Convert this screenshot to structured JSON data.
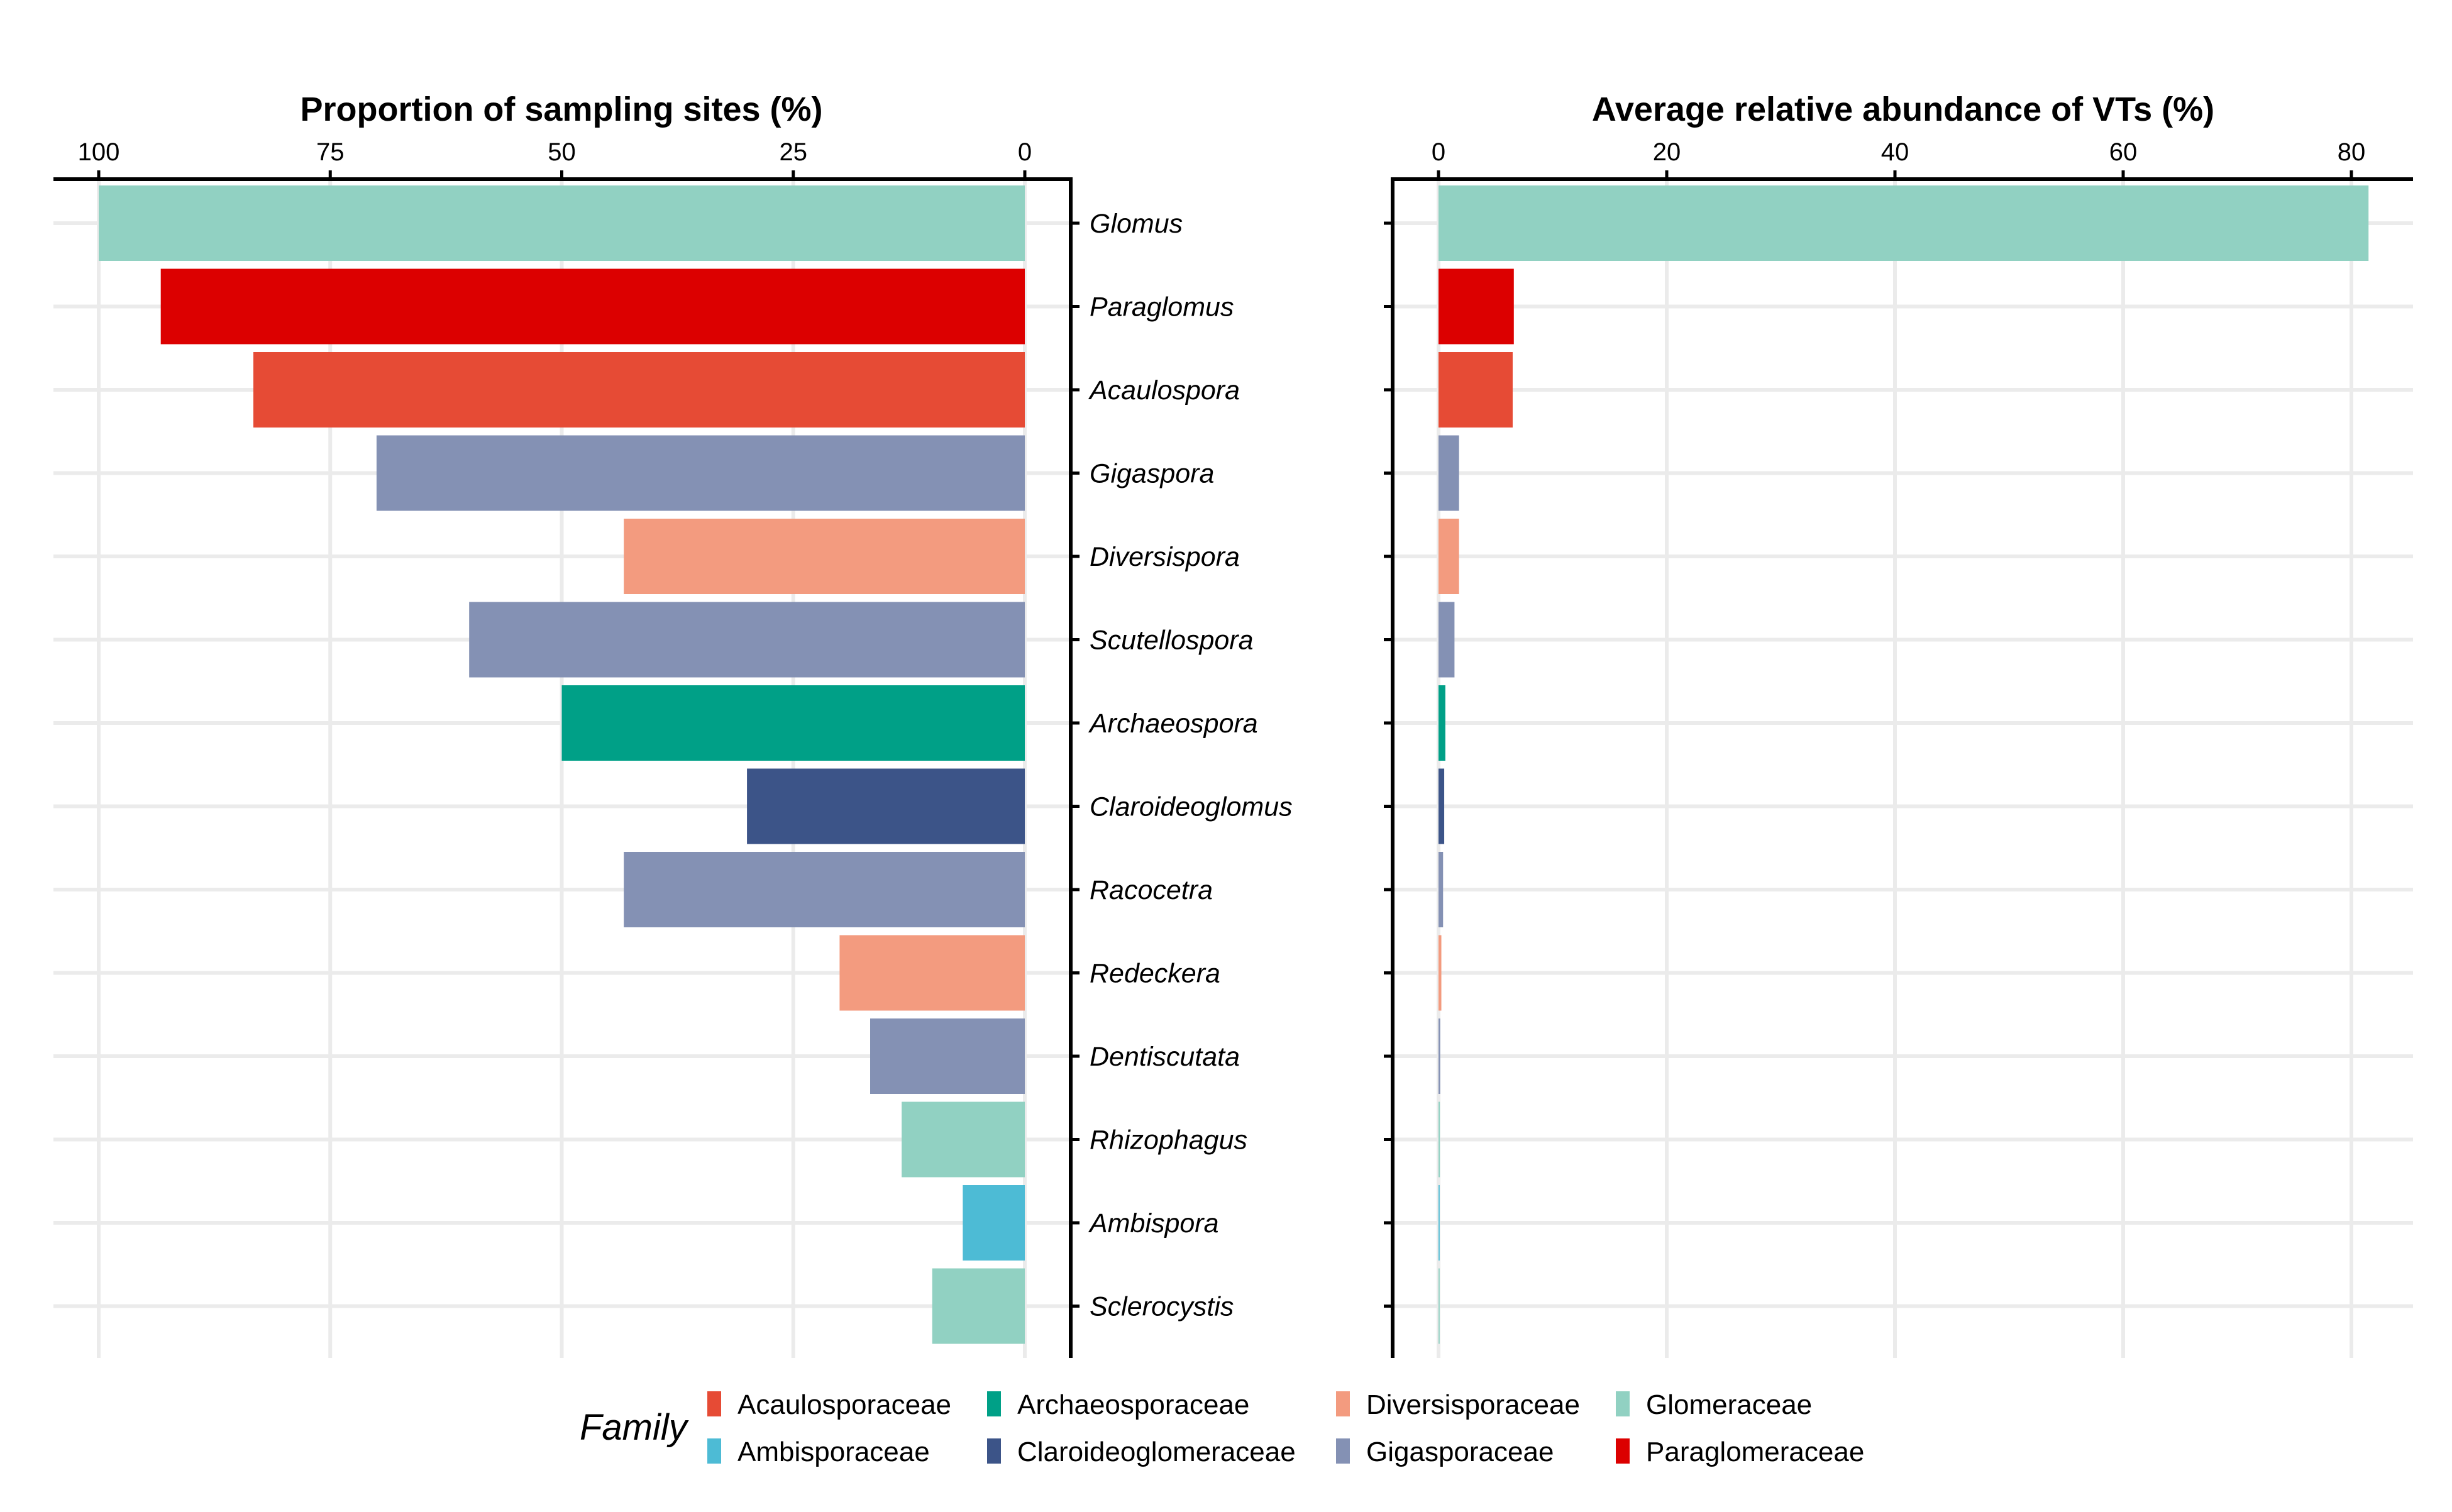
{
  "chart_data": [
    {
      "type": "bar",
      "orientation": "horizontal",
      "direction": "reversed",
      "title": "Proportion of sampling sites (%)",
      "xlim": [
        100,
        0
      ],
      "xticks": [
        100,
        75,
        50,
        25,
        0
      ],
      "grid": true,
      "categories": [
        "Glomus",
        "Paraglomus",
        "Acaulospora",
        "Gigaspora",
        "Diversispora",
        "Scutellospora",
        "Archaeospora",
        "Claroideoglomus",
        "Racocetra",
        "Redeckera",
        "Dentiscutata",
        "Rhizophagus",
        "Ambispora",
        "Sclerocystis"
      ],
      "families": [
        "Glomeraceae",
        "Paraglomeraceae",
        "Acaulosporaceae",
        "Gigasporaceae",
        "Diversisporaceae",
        "Gigasporaceae",
        "Archaeosporaceae",
        "Claroideoglomeraceae",
        "Gigasporaceae",
        "Diversisporaceae",
        "Gigasporaceae",
        "Glomeraceae",
        "Ambisporaceae",
        "Glomeraceae"
      ],
      "values": [
        100,
        93.3,
        83.3,
        70,
        43.3,
        60,
        50,
        30,
        43.3,
        20,
        16.7,
        13.3,
        6.7,
        10
      ]
    },
    {
      "type": "bar",
      "orientation": "horizontal",
      "title": "Average relative abundance of VTs (%)",
      "xlim": [
        0,
        82
      ],
      "xticks": [
        0,
        20,
        40,
        60,
        80
      ],
      "grid": true,
      "categories": [
        "Glomus",
        "Paraglomus",
        "Acaulospora",
        "Gigaspora",
        "Diversispora",
        "Scutellospora",
        "Archaeospora",
        "Claroideoglomus",
        "Racocetra",
        "Redeckera",
        "Dentiscutata",
        "Rhizophagus",
        "Ambispora",
        "Sclerocystis"
      ],
      "families": [
        "Glomeraceae",
        "Paraglomeraceae",
        "Acaulosporaceae",
        "Gigasporaceae",
        "Diversisporaceae",
        "Gigasporaceae",
        "Archaeosporaceae",
        "Claroideoglomeraceae",
        "Gigasporaceae",
        "Diversisporaceae",
        "Gigasporaceae",
        "Glomeraceae",
        "Ambisporaceae",
        "Glomeraceae"
      ],
      "values": [
        81.5,
        6.6,
        6.5,
        1.8,
        1.8,
        1.4,
        0.6,
        0.5,
        0.4,
        0.25,
        0.15,
        0.12,
        0.1,
        0.1
      ]
    }
  ],
  "legend": {
    "title": "Family",
    "placement": "bottom",
    "items": [
      {
        "label": "Acaulosporaceae",
        "color": "#E64B35"
      },
      {
        "label": "Ambisporaceae",
        "color": "#4DBBD5"
      },
      {
        "label": "Archaeosporaceae",
        "color": "#00A087"
      },
      {
        "label": "Claroideoglomeraceae",
        "color": "#3C5488"
      },
      {
        "label": "Diversisporaceae",
        "color": "#F39B7F"
      },
      {
        "label": "Gigasporaceae",
        "color": "#8491B4"
      },
      {
        "label": "Glomeraceae",
        "color": "#91D1C2"
      },
      {
        "label": "Paraglomeraceae",
        "color": "#DC0000"
      }
    ]
  }
}
